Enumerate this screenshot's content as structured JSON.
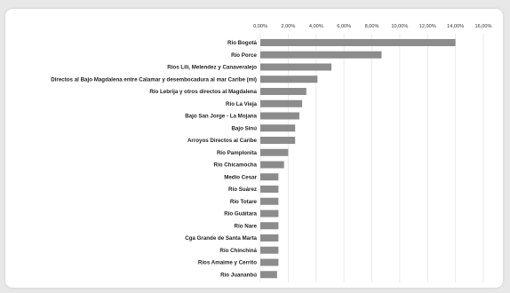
{
  "chart_data": {
    "type": "bar",
    "orientation": "horizontal",
    "title": "",
    "xlabel": "",
    "ylabel": "",
    "xlim": [
      0,
      16
    ],
    "x_ticks": [
      "0,00%",
      "2,00%",
      "4,00%",
      "6,00%",
      "8,00%",
      "10,00%",
      "12,00%",
      "14,00%",
      "16,00%"
    ],
    "categories": [
      "Río Bogotá",
      "Río Porce",
      "Ríos Lilí, Melendez y Canaveralejo",
      "Directos al Bajo Magdalena entre Calamar y desembocadura al mar Caribe (mi)",
      "Río Lebrija y otros directos al Magdalena",
      "Río La Vieja",
      "Bajo San Jorge - La Mojana",
      "Bajo Sinú",
      "Arroyos Directos al Caribe",
      "Río Pamplonita",
      "Río Chicamocha",
      "Medio Cesar",
      "Río Suárez",
      "Río Totare",
      "Río Guáitara",
      "Río Nare",
      "Cga Grande de Santa Marta",
      "Río Chinchiná",
      "Ríos Amaime y Cerrito",
      "Río Juananbú"
    ],
    "values": [
      14.0,
      8.7,
      5.1,
      4.1,
      3.3,
      3.0,
      2.8,
      2.5,
      2.5,
      2.0,
      1.7,
      1.3,
      1.3,
      1.3,
      1.3,
      1.3,
      1.3,
      1.3,
      1.3,
      1.2
    ],
    "grid": true,
    "legend": "none",
    "colors": {
      "bar": "#8c8c8c",
      "grid": "#e6e6e6"
    }
  }
}
